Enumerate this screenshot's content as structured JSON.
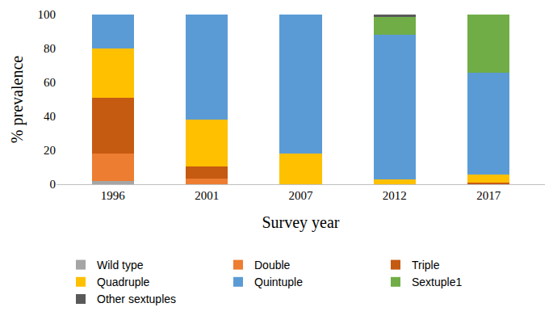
{
  "chart_data": {
    "type": "bar",
    "stacked": true,
    "x_label": "Survey year",
    "y_label": "% prevalence",
    "categories": [
      "1996",
      "2001",
      "2007",
      "2012",
      "2017"
    ],
    "series": [
      {
        "name": "Wild type",
        "color": "#a5a5a5",
        "values": [
          2,
          0,
          0,
          0,
          0
        ]
      },
      {
        "name": "Double",
        "color": "#ed7d31",
        "values": [
          16,
          3.5,
          0,
          0,
          0
        ]
      },
      {
        "name": "Triple",
        "color": "#c55a11",
        "values": [
          33,
          7,
          0,
          0,
          1
        ]
      },
      {
        "name": "Quadruple",
        "color": "#ffc000",
        "values": [
          29,
          27.5,
          18,
          3,
          4.5
        ]
      },
      {
        "name": "Quintuple",
        "color": "#5b9bd5",
        "values": [
          20,
          62,
          82,
          85,
          60
        ]
      },
      {
        "name": "Sextuple1",
        "color": "#70ad47",
        "values": [
          0,
          0,
          0,
          10.5,
          34.5
        ]
      },
      {
        "name": "Other sextuples",
        "color": "#595959",
        "values": [
          0,
          0,
          0,
          1.5,
          0
        ]
      }
    ],
    "ylim": [
      0,
      100
    ],
    "yticks": [
      0,
      20,
      40,
      60,
      80,
      100
    ],
    "grid": false,
    "legend": "bottom"
  }
}
